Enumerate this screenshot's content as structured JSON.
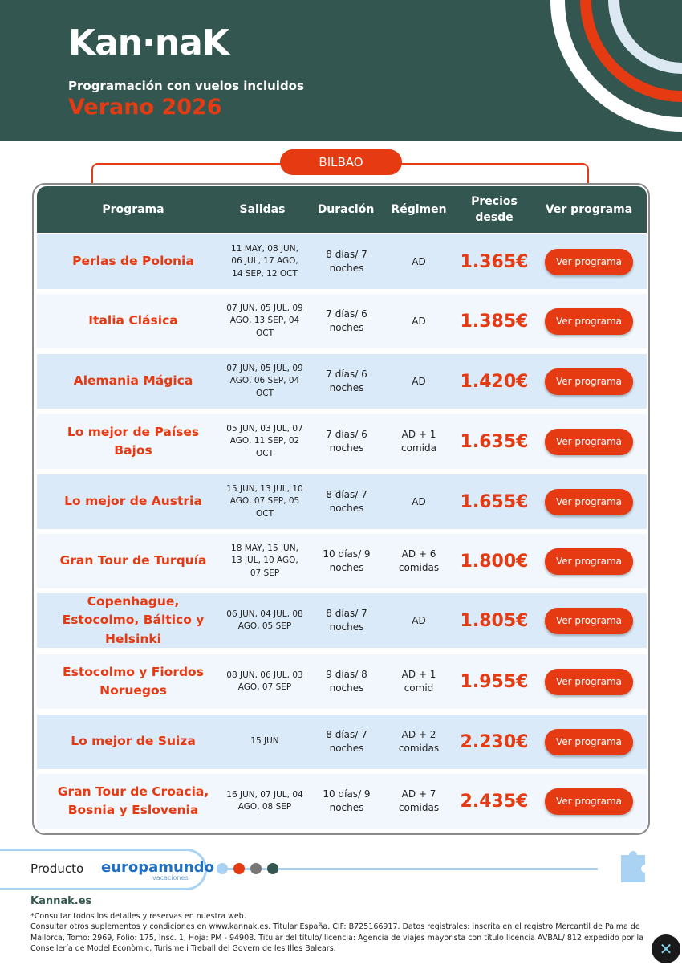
{
  "brand": {
    "logo": "Kan·naK",
    "subtitle": "Programación con vuelos incluidos",
    "season": "Verano 2026"
  },
  "city": "BILBAO",
  "columns": [
    "Programa",
    "Salidas",
    "Duración",
    "Régimen",
    "Precios desde",
    "Ver programa"
  ],
  "rows": [
    {
      "name": "Perlas de Polonia",
      "dates": "11 MAY, 08 JUN, 06 JUL, 17 AGO, 14 SEP, 12 OCT",
      "duration": "8 días/ 7 noches",
      "regime": "AD",
      "price": "1.365€",
      "button": "Ver programa"
    },
    {
      "name": "Italia Clásica",
      "dates": "07 JUN, 05 JUL, 09 AGO, 13 SEP, 04 OCT",
      "duration": "7 días/ 6 noches",
      "regime": "AD",
      "price": "1.385€",
      "button": "Ver programa"
    },
    {
      "name": "Alemania Mágica",
      "dates": "07 JUN, 05 JUL, 09 AGO, 06 SEP, 04 OCT",
      "duration": "7 días/ 6 noches",
      "regime": "AD",
      "price": "1.420€",
      "button": "Ver programa"
    },
    {
      "name": "Lo mejor de Países Bajos",
      "dates": "05 JUN, 03 JUL, 07 AGO, 11 SEP, 02 OCT",
      "duration": "7 días/ 6 noches",
      "regime": "AD + 1 comida",
      "price": "1.635€",
      "button": "Ver programa"
    },
    {
      "name": "Lo mejor de Austria",
      "dates": "15 JUN, 13 JUL, 10 AGO, 07 SEP, 05 OCT",
      "duration": "8 días/ 7 noches",
      "regime": "AD",
      "price": "1.655€",
      "button": "Ver programa"
    },
    {
      "name": "Gran Tour de Turquía",
      "dates": "18 MAY, 15 JUN, 13 JUL, 10 AGO, 07 SEP",
      "duration": "10 días/ 9 noches",
      "regime": "AD + 6 comidas",
      "price": "1.800€",
      "button": "Ver programa"
    },
    {
      "name": "Copenhague, Estocolmo, Báltico y Helsinki",
      "dates": "06 JUN, 04 JUL, 08 AGO, 05 SEP",
      "duration": "8 días/ 7 noches",
      "regime": "AD",
      "price": "1.805€",
      "button": "Ver programa"
    },
    {
      "name": "Estocolmo y Fiordos Noruegos",
      "dates": "08 JUN, 06 JUL, 03 AGO, 07 SEP",
      "duration": "9 días/ 8 noches",
      "regime": "AD + 1 comid",
      "price": "1.955€",
      "button": "Ver programa"
    },
    {
      "name": "Lo mejor de Suiza",
      "dates": "15 JUN",
      "duration": "8 días/ 7 noches",
      "regime": "AD + 2 comidas",
      "price": "2.230€",
      "button": "Ver programa"
    },
    {
      "name": "Gran Tour de Croacia, Bosnia y Eslovenia",
      "dates": "16 JUN, 07 JUL, 04 AGO, 08 SEP",
      "duration": "10 días/ 9 noches",
      "regime": "AD + 7 comidas",
      "price": "2.435€",
      "button": "Ver programa"
    }
  ],
  "footer": {
    "producto": "Producto",
    "partner": "europamundo",
    "partner_sub": "vacaciones",
    "site": "Kannak.es",
    "note": "*Consultar todos los detalles y reservas en nuestra web.",
    "legal": "Consultar otros suplementos y condiciones en www.kannak.es. Titular España. CIF: B725166917. Datos registrales: inscrita en el registro Mercantil de Palma de Mallorca, Tomo: 2969, Folio: 175, Insc. 1, Hoja: PM - 94908. Titular del título/ licencia: Agencia de viajes mayorista con título licencia AVBAL/ 812 expedido por la Consellería de Model Econòmic, Turisme i Treball del Govern de les Illes Balears."
  },
  "colors": {
    "brand_green": "#335750",
    "accent": "#e63a12",
    "light_blue": "#a9d2f3",
    "row_a": "#daeaf8",
    "row_b": "#f1f7fd"
  }
}
